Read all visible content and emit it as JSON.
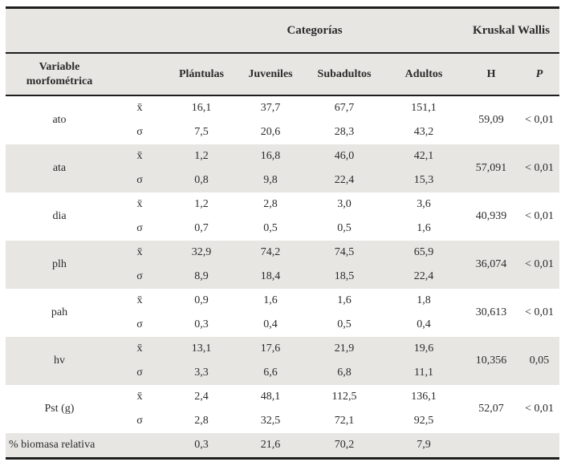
{
  "table": {
    "header": {
      "categories_label": "Categorías",
      "kruskal_wallis_label": "Kruskal Wallis",
      "variable_label": "Variable morfométrica",
      "category_columns": [
        "Plántulas",
        "Juveniles",
        "Subadultos",
        "Adultos"
      ],
      "h_label": "H",
      "p_label": "P"
    },
    "stat": {
      "mean_symbol": "x̄",
      "sd_symbol": "σ"
    },
    "groups": [
      {
        "name": "ato",
        "mean": [
          "16,1",
          "37,7",
          "67,7",
          "151,1"
        ],
        "sd": [
          "7,5",
          "20,6",
          "28,3",
          "43,2"
        ],
        "h": "59,09",
        "p": "< 0,01"
      },
      {
        "name": "ata",
        "mean": [
          "1,2",
          "16,8",
          "46,0",
          "42,1"
        ],
        "sd": [
          "0,8",
          "9,8",
          "22,4",
          "15,3"
        ],
        "h": "57,091",
        "p": "< 0,01"
      },
      {
        "name": "dia",
        "mean": [
          "1,2",
          "2,8",
          "3,0",
          "3,6"
        ],
        "sd": [
          "0,7",
          "0,5",
          "0,5",
          "1,6"
        ],
        "h": "40,939",
        "p": "< 0,01"
      },
      {
        "name": "plh",
        "mean": [
          "32,9",
          "74,2",
          "74,5",
          "65,9"
        ],
        "sd": [
          "8,9",
          "18,4",
          "18,5",
          "22,4"
        ],
        "h": "36,074",
        "p": "< 0,01"
      },
      {
        "name": "pah",
        "mean": [
          "0,9",
          "1,6",
          "1,6",
          "1,8"
        ],
        "sd": [
          "0,3",
          "0,4",
          "0,5",
          "0,4"
        ],
        "h": "30,613",
        "p": "< 0,01"
      },
      {
        "name": "hv",
        "mean": [
          "13,1",
          "17,6",
          "21,9",
          "19,6"
        ],
        "sd": [
          "3,3",
          "6,6",
          "6,8",
          "11,1"
        ],
        "h": "10,356",
        "p": "0,05"
      },
      {
        "name": "Pst (g)",
        "mean": [
          "2,4",
          "48,1",
          "112,5",
          "136,1"
        ],
        "sd": [
          "2,8",
          "32,5",
          "72,1",
          "92,5"
        ],
        "h": "52,07",
        "p": "< 0,01"
      }
    ],
    "biomass_row": {
      "name": "% biomasa relativa",
      "values": [
        "0,3",
        "21,6",
        "70,2",
        "7,9"
      ]
    }
  },
  "colors": {
    "shaded_row_bg": "#e7e6e3",
    "header_bg": "#e7e6e3",
    "border": "#1e1e1e",
    "text": "#2b2b2b"
  }
}
